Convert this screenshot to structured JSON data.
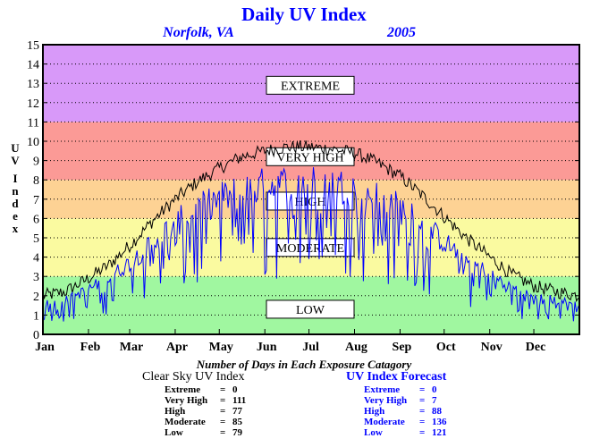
{
  "chart_data": {
    "type": "line",
    "title": "Daily UV Index",
    "subtitle_location": "Norfolk, VA",
    "subtitle_year": "2005",
    "ylabel": "UV Index",
    "ylim": [
      0,
      15
    ],
    "yticks": [
      "0",
      "1",
      "2",
      "3",
      "4",
      "5",
      "6",
      "7",
      "8",
      "9",
      "10",
      "11",
      "12",
      "13",
      "14",
      "15"
    ],
    "xlim": [
      0,
      365
    ],
    "xtick_labels": [
      "Jan",
      "Feb",
      "Mar",
      "Apr",
      "May",
      "Jun",
      "Jul",
      "Aug",
      "Sep",
      "Oct",
      "Nov",
      "Dec"
    ],
    "month_starts": [
      0,
      31,
      59,
      90,
      120,
      151,
      181,
      212,
      243,
      273,
      304,
      334
    ],
    "grid": true,
    "bands": [
      {
        "label": "LOW",
        "from": 0,
        "to": 3,
        "color": "#a0f7a0"
      },
      {
        "label": "MODERATE",
        "from": 3,
        "to": 6,
        "color": "#fafaa0"
      },
      {
        "label": "HIGH",
        "from": 6,
        "to": 8,
        "color": "#fdd294"
      },
      {
        "label": "VERY HIGH",
        "from": 8,
        "to": 11,
        "color": "#fb9a96"
      },
      {
        "label": "EXTREME",
        "from": 11,
        "to": 15,
        "color": "#d899f9"
      }
    ],
    "band_label_values": {
      "EXTREME": 12.9,
      "VERY HIGH": 9.2,
      "HIGH": 6.9,
      "MODERATE": 4.5,
      "LOW": 1.3
    },
    "series": [
      {
        "name": "Clear Sky UV Index",
        "color": "#000000",
        "envelope": [
          [
            0,
            2.0
          ],
          [
            15,
            2.2
          ],
          [
            31,
            2.9
          ],
          [
            45,
            3.6
          ],
          [
            59,
            4.6
          ],
          [
            75,
            5.9
          ],
          [
            90,
            7.0
          ],
          [
            105,
            7.9
          ],
          [
            120,
            8.6
          ],
          [
            135,
            9.2
          ],
          [
            151,
            9.5
          ],
          [
            166,
            9.7
          ],
          [
            181,
            9.7
          ],
          [
            196,
            9.6
          ],
          [
            212,
            9.4
          ],
          [
            227,
            8.9
          ],
          [
            243,
            8.2
          ],
          [
            258,
            7.2
          ],
          [
            273,
            6.1
          ],
          [
            288,
            5.0
          ],
          [
            304,
            4.0
          ],
          [
            319,
            3.1
          ],
          [
            334,
            2.5
          ],
          [
            350,
            2.2
          ],
          [
            365,
            2.0
          ]
        ]
      },
      {
        "name": "UV Index Forecast",
        "color": "#0000ff",
        "envelope": [
          [
            0,
            1.6
          ],
          [
            15,
            1.8
          ],
          [
            31,
            2.4
          ],
          [
            45,
            3.0
          ],
          [
            59,
            3.8
          ],
          [
            75,
            4.9
          ],
          [
            90,
            5.9
          ],
          [
            105,
            6.6
          ],
          [
            120,
            7.2
          ],
          [
            135,
            7.6
          ],
          [
            151,
            7.9
          ],
          [
            166,
            8.0
          ],
          [
            181,
            8.0
          ],
          [
            196,
            7.9
          ],
          [
            212,
            7.8
          ],
          [
            227,
            7.3
          ],
          [
            243,
            6.7
          ],
          [
            258,
            5.9
          ],
          [
            273,
            4.9
          ],
          [
            288,
            4.0
          ],
          [
            304,
            3.2
          ],
          [
            319,
            2.5
          ],
          [
            334,
            2.0
          ],
          [
            350,
            1.8
          ],
          [
            365,
            1.6
          ]
        ]
      }
    ]
  },
  "header": {
    "title": "Daily UV Index",
    "location": "Norfolk, VA",
    "year": "2005"
  },
  "footer": {
    "caption": "Number of Days in Each Exposure Catagory",
    "clear_sky": {
      "title": "Clear Sky UV Index",
      "rows": [
        {
          "label": "Extreme",
          "eq": "=",
          "value": "0"
        },
        {
          "label": "Very High",
          "eq": "=",
          "value": "111"
        },
        {
          "label": "High",
          "eq": "=",
          "value": "77"
        },
        {
          "label": "Moderate",
          "eq": "=",
          "value": "85"
        },
        {
          "label": "Low",
          "eq": "=",
          "value": "79"
        }
      ]
    },
    "forecast": {
      "title": "UV Index Forecast",
      "rows": [
        {
          "label": "Extreme",
          "eq": "=",
          "value": "0"
        },
        {
          "label": "Very High",
          "eq": "=",
          "value": "7"
        },
        {
          "label": "High",
          "eq": "=",
          "value": "88"
        },
        {
          "label": "Moderate",
          "eq": "=",
          "value": "136"
        },
        {
          "label": "Low",
          "eq": "=",
          "value": "121"
        }
      ]
    }
  }
}
